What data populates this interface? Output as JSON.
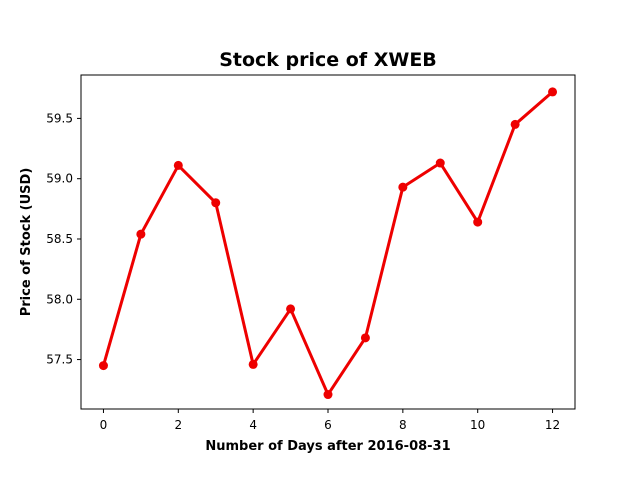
{
  "chart_data": {
    "type": "line",
    "title": "Stock price of XWEB",
    "xlabel": "Number of Days after 2016-08-31",
    "ylabel": "Price of Stock (USD)",
    "x": [
      0,
      1,
      2,
      3,
      4,
      5,
      6,
      7,
      8,
      9,
      10,
      11,
      12
    ],
    "series": [
      {
        "values": [
          57.45,
          58.54,
          59.11,
          58.8,
          57.46,
          57.92,
          57.21,
          57.68,
          58.93,
          59.13,
          58.64,
          59.45,
          59.72
        ],
        "color": "#ee0000"
      }
    ],
    "xlim": [
      -0.6,
      12.6
    ],
    "ylim": [
      57.09,
      59.86
    ],
    "xticks": [
      0,
      2,
      4,
      6,
      8,
      10,
      12
    ],
    "xtick_labels": [
      "0",
      "2",
      "4",
      "6",
      "8",
      "10",
      "12"
    ],
    "yticks": [
      57.5,
      58.0,
      58.5,
      59.0,
      59.5
    ],
    "ytick_labels": [
      "57.5",
      "58.0",
      "58.5",
      "59.0",
      "59.5"
    ],
    "grid": false,
    "legend": "none"
  }
}
